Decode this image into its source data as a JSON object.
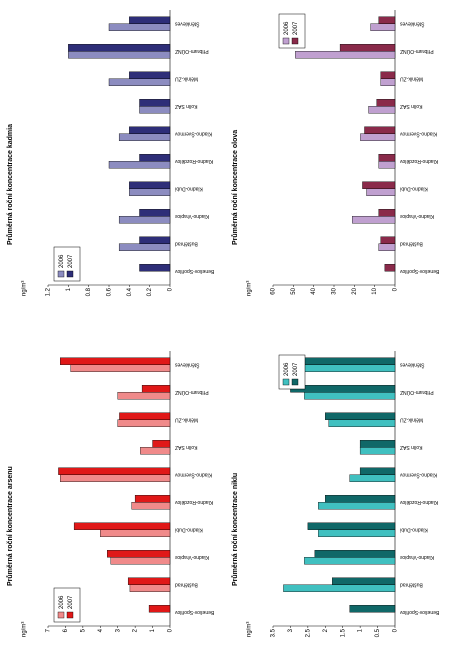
{
  "chart_data": [
    {
      "type": "bar",
      "title": "Průměrná roční koncentrace kadmia",
      "y_label": "ng/m³",
      "categories": [
        "Benešov-Spořilov",
        "Buštěhrad",
        "Kladno-Vrapice",
        "Kladno-Dubí",
        "Kladno-Rozdělov",
        "Kladno-Švermov",
        "Kolín SAZ",
        "Mělník-ZU",
        "Příbram-OÚNZ",
        "Štěnkleves"
      ],
      "series": [
        {
          "name": "2006",
          "color": "#8c8cc0",
          "values": [
            null,
            0.5,
            0.5,
            0.4,
            0.6,
            0.5,
            0.3,
            0.6,
            1.0,
            0.6
          ]
        },
        {
          "name": "2007",
          "color": "#2e2e78",
          "values": [
            0.3,
            0.3,
            0.3,
            0.4,
            0.3,
            0.4,
            0.3,
            0.4,
            1.0,
            0.4
          ]
        }
      ],
      "ylim": [
        0,
        1.2
      ],
      "yticks": [
        0,
        0.2,
        0.4,
        0.6,
        0.8,
        1,
        1.2
      ],
      "legend": "upper left"
    },
    {
      "type": "bar",
      "title": "Průměrná roční koncentrace olova",
      "y_label": "ng/m³",
      "categories": [
        "Benešov-Spořilov",
        "Buštěhrad",
        "Kladno-Vrapice",
        "Kladno-Dubí",
        "Kladno-Rozdělov",
        "Kladno-Švermov",
        "Kolín SAZ",
        "Mělník-ZU",
        "Příbram-OÚNZ",
        "Štěnkleves"
      ],
      "series": [
        {
          "name": "2006",
          "color": "#c0a0d0",
          "values": [
            null,
            8,
            21,
            14,
            8,
            17,
            13,
            7,
            49,
            12
          ]
        },
        {
          "name": "2007",
          "color": "#8a2a4a",
          "values": [
            5,
            7,
            8,
            16,
            8,
            15,
            9,
            7,
            27,
            8
          ]
        }
      ],
      "ylim": [
        0,
        60
      ],
      "yticks": [
        0,
        10,
        20,
        30,
        40,
        50,
        60
      ],
      "legend": "upper right"
    },
    {
      "type": "bar",
      "title": "Průměrná roční koncentrace arsenu",
      "y_label": "ng/m³",
      "categories": [
        "Benešov-Spořilov",
        "Buštěhrad",
        "Kladno-Vrapice",
        "Kladno-Dubí",
        "Kladno-Rozdělov",
        "Kladno-Švermov",
        "Kolín SAZ",
        "Mělník-ZU",
        "Příbram-OÚNZ",
        "Štěnkleves"
      ],
      "series": [
        {
          "name": "2006",
          "color": "#f08a8a",
          "values": [
            null,
            2.3,
            3.4,
            4.0,
            2.2,
            6.3,
            1.7,
            3.0,
            3.0,
            5.7
          ]
        },
        {
          "name": "2007",
          "color": "#e01818",
          "values": [
            1.2,
            2.4,
            3.6,
            5.5,
            2.0,
            6.4,
            1.0,
            2.9,
            1.6,
            6.3
          ]
        }
      ],
      "ylim": [
        0,
        7
      ],
      "yticks": [
        0,
        1,
        2,
        3,
        4,
        5,
        6,
        7
      ],
      "legend": "upper left"
    },
    {
      "type": "bar",
      "title": "Průměrná roční koncentrace niklu",
      "y_label": "ng/m³",
      "categories": [
        "Benešov-Spořilov",
        "Buštěhrad",
        "Kladno-Vrapice",
        "Kladno-Dubí",
        "Kladno-Rozdělov",
        "Kladno-Švermov",
        "Kolín SAZ",
        "Mělník-ZU",
        "Příbram-OÚNZ",
        "Štěnkleves"
      ],
      "series": [
        {
          "name": "2006",
          "color": "#40c0c0",
          "values": [
            null,
            3.2,
            2.6,
            2.2,
            2.2,
            1.3,
            1.0,
            1.9,
            2.6,
            3.0
          ]
        },
        {
          "name": "2007",
          "color": "#106868",
          "values": [
            1.3,
            1.8,
            2.3,
            2.5,
            2.0,
            1.0,
            1.0,
            2.0,
            3.0,
            2.8
          ]
        }
      ],
      "ylim": [
        0,
        3.5
      ],
      "yticks": [
        0,
        0.5,
        1,
        1.5,
        2,
        2.5,
        3,
        3.5
      ],
      "legend": "upper right"
    }
  ]
}
